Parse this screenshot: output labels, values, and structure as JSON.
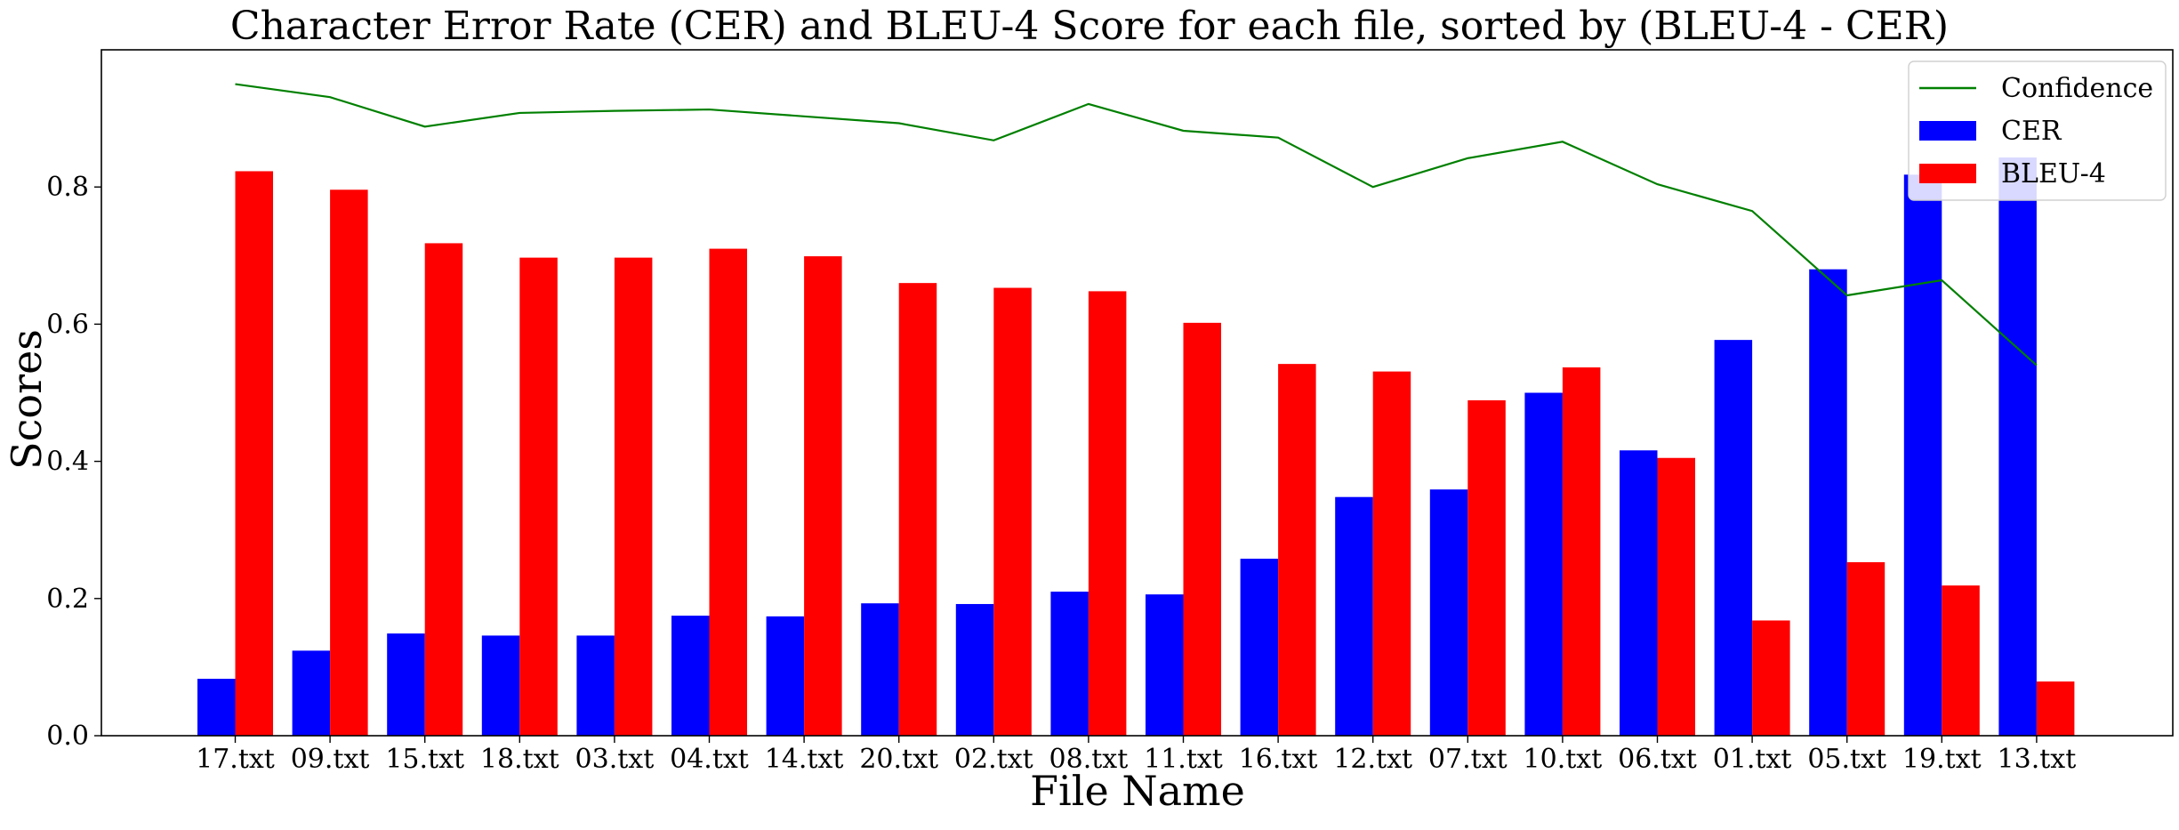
{
  "chart_data": {
    "type": "bar",
    "title": "Character Error Rate (CER) and BLEU-4 Score for each file, sorted by (BLEU-4 - CER)",
    "xlabel": "File Name",
    "ylabel": "Scores",
    "ylim": [
      0,
      1.0
    ],
    "yticks": [
      "0.0",
      "0.2",
      "0.4",
      "0.6",
      "0.8"
    ],
    "grid": false,
    "legend_position": "top-right",
    "categories": [
      "17.txt",
      "09.txt",
      "15.txt",
      "18.txt",
      "03.txt",
      "04.txt",
      "14.txt",
      "20.txt",
      "02.txt",
      "08.txt",
      "11.txt",
      "16.txt",
      "12.txt",
      "07.txt",
      "10.txt",
      "06.txt",
      "01.txt",
      "05.txt",
      "19.txt",
      "13.txt"
    ],
    "series": [
      {
        "name": "CER",
        "kind": "bar",
        "color": "#0000ff",
        "values": [
          0.083,
          0.124,
          0.149,
          0.146,
          0.146,
          0.175,
          0.174,
          0.193,
          0.192,
          0.21,
          0.206,
          0.258,
          0.348,
          0.359,
          0.5,
          0.416,
          0.577,
          0.68,
          0.818,
          0.843
        ]
      },
      {
        "name": "BLEU-4",
        "kind": "bar",
        "color": "#ff0000",
        "values": [
          0.823,
          0.796,
          0.718,
          0.697,
          0.697,
          0.71,
          0.699,
          0.66,
          0.653,
          0.648,
          0.602,
          0.542,
          0.531,
          0.489,
          0.537,
          0.405,
          0.168,
          0.253,
          0.219,
          0.079
        ]
      },
      {
        "name": "Confidence",
        "kind": "line",
        "color": "#008000",
        "values": [
          0.95,
          0.931,
          0.888,
          0.908,
          0.911,
          0.913,
          0.903,
          0.893,
          0.868,
          0.921,
          0.882,
          0.872,
          0.8,
          0.842,
          0.866,
          0.804,
          0.765,
          0.642,
          0.664,
          0.54
        ]
      }
    ]
  }
}
